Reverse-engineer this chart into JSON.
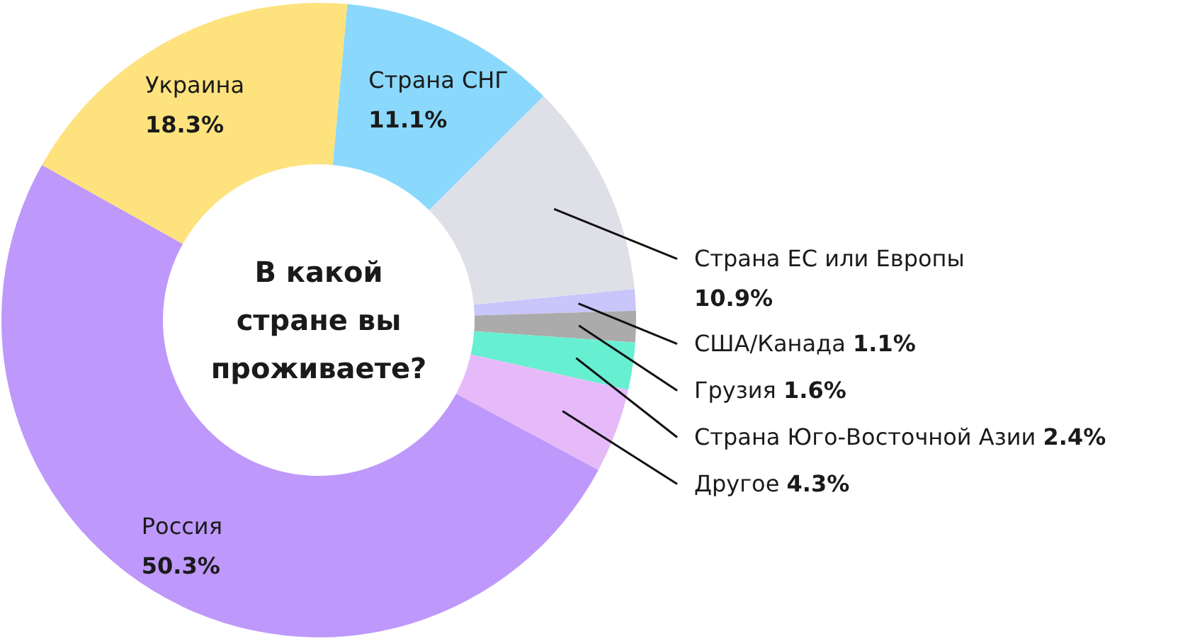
{
  "chart_data": {
    "type": "donut",
    "title": "В какой стране вы проживаете?",
    "categories": [
      "Страна СНГ",
      "Страна ЕС или Европы",
      "США/Канада",
      "Грузия",
      "Страна Юго-Восточной Азии",
      "Другое",
      "Россия",
      "Украина"
    ],
    "values": [
      11.1,
      10.9,
      1.1,
      1.6,
      2.4,
      4.3,
      50.3,
      18.3
    ],
    "value_labels": [
      "11.1%",
      "10.9%",
      "1.1%",
      "1.6%",
      "2.4%",
      "4.3%",
      "50.3%",
      "18.3%"
    ],
    "colors": [
      "#8ad8fc",
      "#dfdfe8",
      "#c9c6fb",
      "#ababab",
      "#66efd0",
      "#e6baf9",
      "#be98fb",
      "#fde27e"
    ],
    "legend": false
  }
}
